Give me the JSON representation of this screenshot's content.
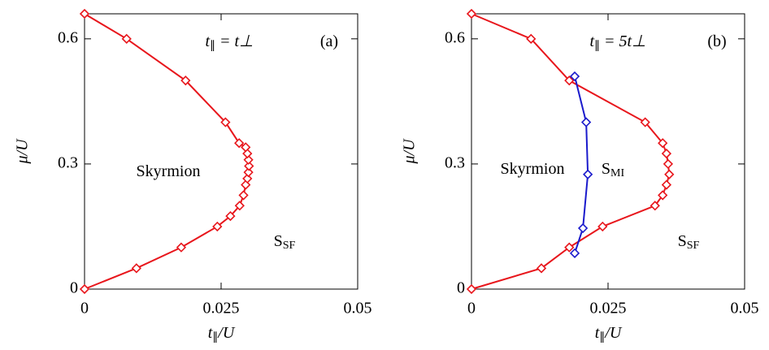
{
  "chart_data": [
    {
      "type": "line",
      "xlim": [
        0,
        0.05
      ],
      "ylim": [
        0,
        0.66
      ],
      "xticks": [
        0,
        0.025,
        0.05
      ],
      "yticks": [
        0,
        0.3,
        0.6
      ],
      "x_label": {
        "text": "t",
        "sub": "∥",
        "rest": "/U"
      },
      "y_label": "μ/U",
      "annotations": [
        {
          "text": "t",
          "sub": "∥",
          "rest": " = t⊥"
        },
        {
          "text": "(a)"
        },
        {
          "text": "Skyrmion"
        },
        {
          "text": "S",
          "sub": "SF"
        }
      ],
      "series": [
        {
          "color": "#e8161c",
          "x": [
            0,
            0.0095,
            0.0177,
            0.0243,
            0.0267,
            0.0284,
            0.0291,
            0.0295,
            0.0298,
            0.03,
            0.0301,
            0.03,
            0.0298,
            0.0295,
            0.0283,
            0.0258,
            0.0185,
            0.0077,
            0
          ],
          "values": [
            0,
            0.05,
            0.1,
            0.15,
            0.175,
            0.2,
            0.225,
            0.25,
            0.265,
            0.28,
            0.295,
            0.31,
            0.325,
            0.34,
            0.35,
            0.4,
            0.5,
            0.6,
            0.66
          ]
        }
      ]
    },
    {
      "type": "line",
      "xlim": [
        0,
        0.05
      ],
      "ylim": [
        0,
        0.66
      ],
      "xticks": [
        0,
        0.025,
        0.05
      ],
      "yticks": [
        0,
        0.3,
        0.6
      ],
      "x_label": {
        "text": "t",
        "sub": "∥",
        "rest": "/U"
      },
      "y_label": "μ/U",
      "annotations": [
        {
          "text": "t",
          "sub": "∥",
          "rest": " = 5t⊥"
        },
        {
          "text": "(b)"
        },
        {
          "text": "Skyrmion"
        },
        {
          "text": "S",
          "sub": "MI"
        },
        {
          "text": "S",
          "sub": "SF"
        }
      ],
      "series": [
        {
          "color": "#e8161c",
          "x": [
            0,
            0.0128,
            0.0179,
            0.024,
            0.0336,
            0.035,
            0.0357,
            0.0362,
            0.036,
            0.0357,
            0.035,
            0.0318,
            0.0179,
            0.0109,
            0
          ],
          "values": [
            0,
            0.05,
            0.1,
            0.15,
            0.2,
            0.225,
            0.25,
            0.275,
            0.3,
            0.325,
            0.35,
            0.4,
            0.5,
            0.6,
            0.66
          ]
        },
        {
          "color": "#1a1acc",
          "x": [
            0.0189,
            0.0204,
            0.0213,
            0.021,
            0.0189
          ],
          "values": [
            0.086,
            0.146,
            0.275,
            0.4,
            0.51
          ]
        }
      ]
    }
  ]
}
